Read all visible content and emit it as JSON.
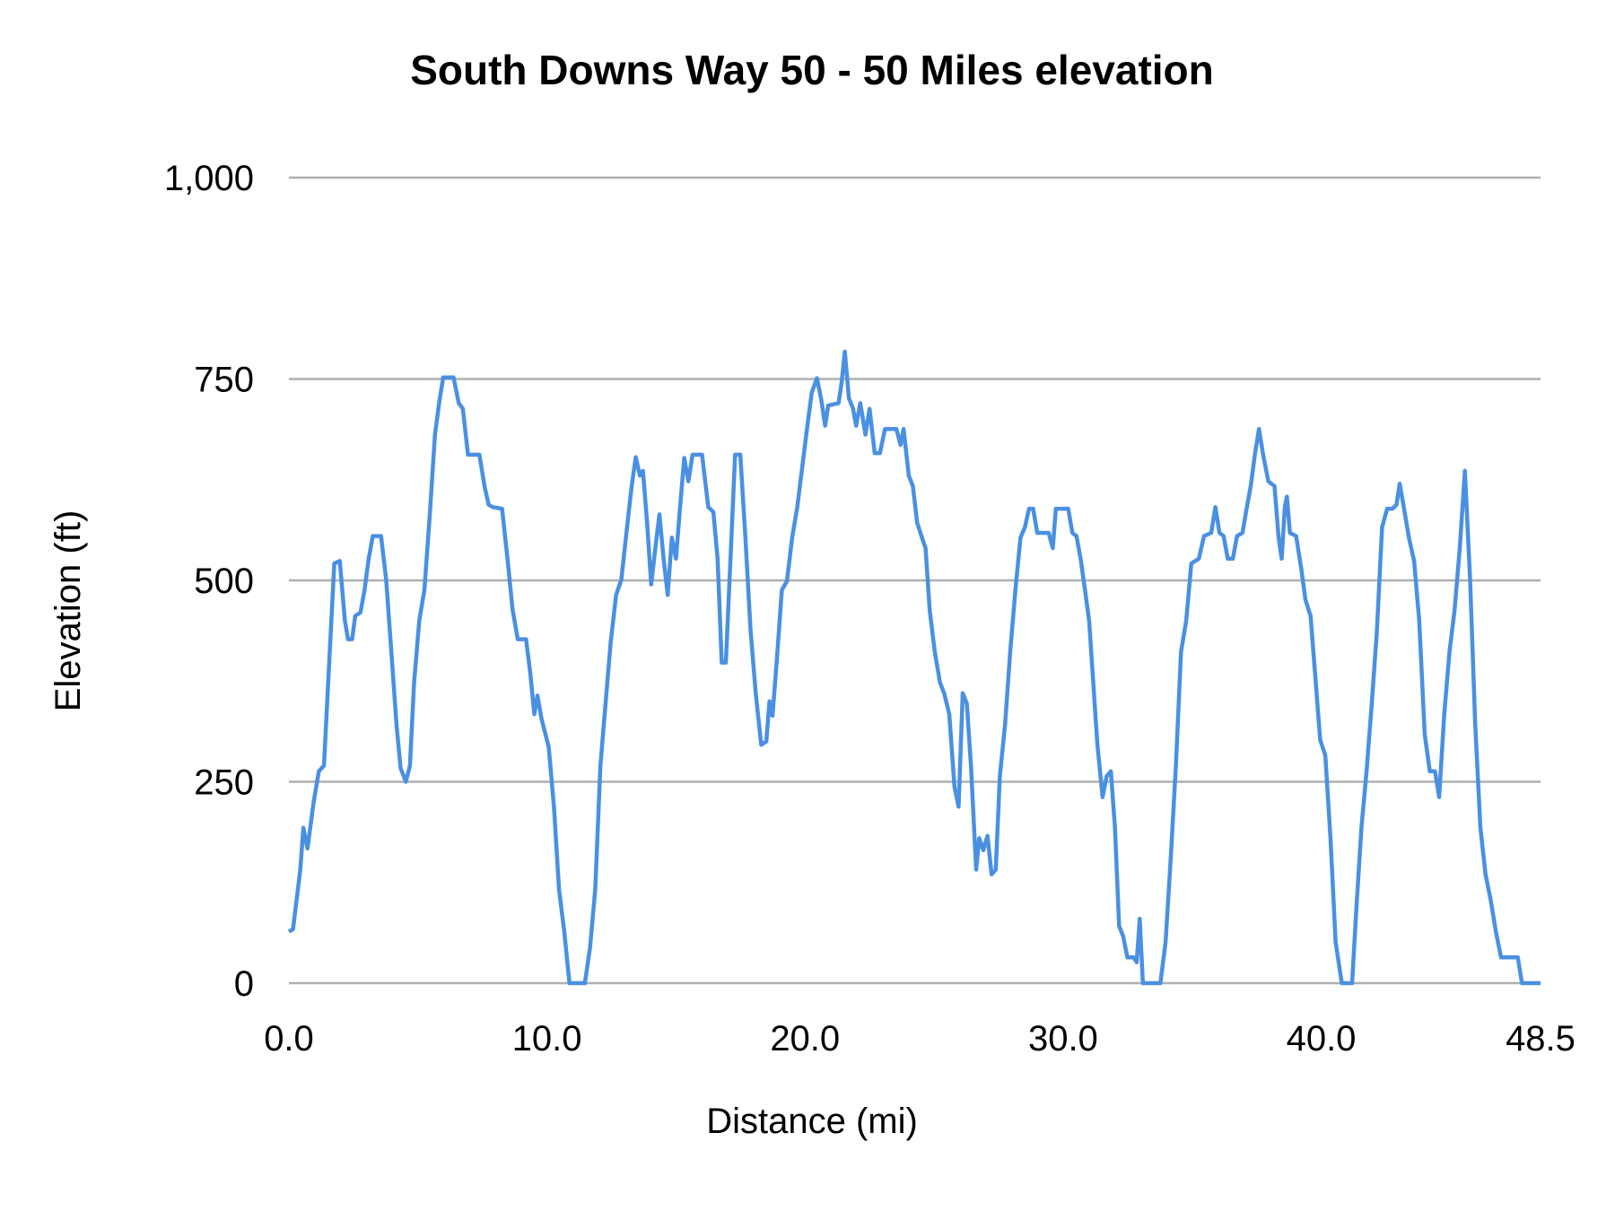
{
  "chart_data": {
    "type": "line",
    "title": "South Downs Way 50 - 50 Miles elevation",
    "xlabel": "Distance (mi)",
    "ylabel": "Elevation (ft)",
    "xlim": [
      0,
      48.5
    ],
    "ylim": [
      0,
      1000
    ],
    "xticks": [
      0,
      10,
      20,
      30,
      40,
      48.5
    ],
    "xtick_labels": [
      "0.0",
      "10.0",
      "20.0",
      "30.0",
      "40.0",
      "48.5"
    ],
    "yticks": [
      0,
      250,
      500,
      750,
      1000
    ],
    "ytick_labels": [
      "0",
      "250",
      "500",
      "750",
      "1,000"
    ],
    "grid": "horizontal",
    "legend": "none",
    "line_color": "#4a90e2",
    "grid_color": "#b0b0b0",
    "series": [
      {
        "x": [
          0,
          0.16,
          0.44,
          0.56,
          0.72,
          0.96,
          1.16,
          1.36,
          1.56,
          1.76,
          1.97,
          2.17,
          2.29,
          2.45,
          2.57,
          2.77,
          2.93,
          3.09,
          3.25,
          3.57,
          3.77,
          3.97,
          4.17,
          4.33,
          4.53,
          4.69,
          4.85,
          5.05,
          5.25,
          5.45,
          5.66,
          5.82,
          5.98,
          6.38,
          6.58,
          6.74,
          6.94,
          7.38,
          7.58,
          7.74,
          7.9,
          8.26,
          8.47,
          8.67,
          8.87,
          9.19,
          9.35,
          9.51,
          9.63,
          9.79,
          10.07,
          10.27,
          10.47,
          10.67,
          10.87,
          11.47,
          11.67,
          11.87,
          12.07,
          12.27,
          12.47,
          12.68,
          12.88,
          13.08,
          13.28,
          13.44,
          13.6,
          13.72,
          13.88,
          14.04,
          14.2,
          14.36,
          14.52,
          14.68,
          14.84,
          15,
          15.16,
          15.32,
          15.48,
          15.64,
          16.01,
          16.25,
          16.45,
          16.61,
          16.77,
          16.93,
          17.13,
          17.29,
          17.49,
          17.69,
          17.89,
          18.09,
          18.3,
          18.5,
          18.62,
          18.74,
          18.9,
          19.1,
          19.3,
          19.5,
          19.7,
          19.9,
          20.1,
          20.26,
          20.46,
          20.62,
          20.78,
          20.9,
          21.3,
          21.42,
          21.54,
          21.7,
          21.86,
          21.98,
          22.14,
          22.34,
          22.5,
          22.7,
          22.9,
          23.1,
          23.54,
          23.7,
          23.82,
          24.02,
          24.18,
          24.34,
          24.51,
          24.67,
          24.83,
          25.03,
          25.23,
          25.39,
          25.59,
          25.79,
          25.95,
          26.11,
          26.27,
          26.43,
          26.63,
          26.75,
          26.91,
          27.07,
          27.23,
          27.39,
          27.55,
          27.75,
          27.95,
          28.15,
          28.35,
          28.52,
          28.68,
          28.84,
          29,
          29.44,
          29.6,
          29.72,
          30.2,
          30.36,
          30.52,
          30.68,
          30.85,
          31.01,
          31.17,
          31.33,
          31.53,
          31.69,
          31.85,
          32.01,
          32.17,
          32.33,
          32.49,
          32.73,
          32.85,
          32.97,
          33.09,
          33.77,
          33.97,
          34.17,
          34.37,
          34.57,
          34.77,
          34.97,
          35.26,
          35.46,
          35.74,
          35.9,
          36.06,
          36.22,
          36.38,
          36.58,
          36.74,
          36.95,
          37.11,
          37.27,
          37.43,
          37.59,
          37.75,
          37.95,
          38.19,
          38.35,
          38.47,
          38.59,
          38.67,
          38.79,
          39.03,
          39.23,
          39.39,
          39.59,
          39.76,
          39.96,
          40.16,
          40.36,
          40.56,
          40.8,
          41.2,
          41.36,
          41.56,
          41.76,
          41.96,
          42.16,
          42.36,
          42.56,
          42.76,
          42.92,
          43.04,
          43.2,
          43.4,
          43.6,
          43.8,
          44.01,
          44.21,
          44.41,
          44.57,
          44.77,
          44.97,
          45.17,
          45.37,
          45.57,
          45.77,
          45.97,
          46.17,
          46.37,
          46.57,
          46.77,
          46.97,
          47.62,
          47.78,
          48.5
        ],
        "y": [
          64,
          67,
          141,
          193,
          167,
          225,
          263,
          270,
          398,
          521,
          524,
          450,
          427,
          427,
          456,
          460,
          488,
          527,
          555,
          555,
          501,
          411,
          321,
          267,
          250,
          270,
          373,
          450,
          488,
          578,
          681,
          720,
          752,
          752,
          720,
          713,
          656,
          656,
          617,
          594,
          591,
          589,
          527,
          463,
          427,
          427,
          386,
          334,
          357,
          328,
          293,
          219,
          116,
          64,
          0,
          0,
          45,
          116,
          270,
          347,
          424,
          482,
          501,
          559,
          617,
          653,
          630,
          636,
          572,
          495,
          540,
          582,
          527,
          482,
          553,
          527,
          591,
          652,
          623,
          656,
          656,
          591,
          585,
          527,
          398,
          398,
          540,
          656,
          656,
          553,
          437,
          360,
          296,
          300,
          350,
          332,
          398,
          488,
          499,
          553,
          591,
          643,
          694,
          733,
          751,
          726,
          692,
          717,
          720,
          746,
          784,
          726,
          713,
          692,
          720,
          681,
          713,
          658,
          658,
          688,
          688,
          668,
          688,
          630,
          617,
          572,
          555,
          540,
          463,
          411,
          373,
          360,
          334,
          244,
          219,
          360,
          347,
          270,
          141,
          180,
          165,
          183,
          135,
          141,
          257,
          321,
          411,
          488,
          553,
          566,
          589,
          589,
          559,
          559,
          540,
          589,
          589,
          559,
          555,
          527,
          488,
          450,
          373,
          296,
          231,
          257,
          263,
          193,
          71,
          58,
          32,
          32,
          26,
          80,
          0,
          0,
          51,
          154,
          270,
          411,
          450,
          521,
          527,
          555,
          559,
          591,
          559,
          555,
          527,
          527,
          555,
          559,
          589,
          617,
          656,
          688,
          656,
          623,
          617,
          553,
          527,
          591,
          604,
          559,
          555,
          514,
          476,
          456,
          386,
          302,
          283,
          180,
          51,
          0,
          0,
          90,
          193,
          263,
          347,
          437,
          566,
          589,
          589,
          594,
          620,
          591,
          553,
          524,
          450,
          309,
          263,
          263,
          231,
          334,
          411,
          463,
          540,
          636,
          501,
          321,
          193,
          135,
          103,
          64,
          32,
          32,
          0,
          0
        ]
      }
    ]
  }
}
